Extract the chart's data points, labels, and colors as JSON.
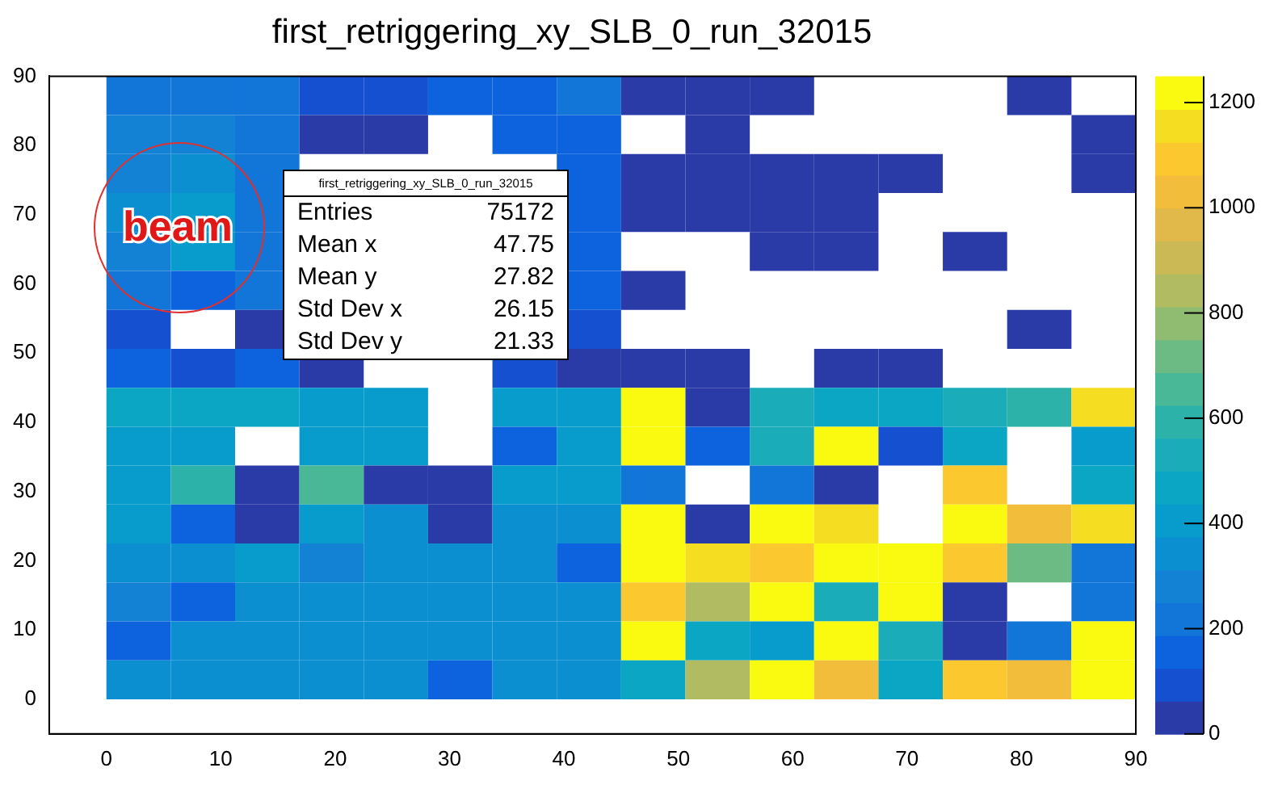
{
  "chart_data": {
    "type": "heatmap",
    "title": "first_retriggering_xy_SLB_0_run_32015",
    "x": [
      2.8125,
      8.4375,
      14.0625,
      19.6875,
      25.3125,
      30.9375,
      36.5625,
      42.1875,
      47.8125,
      53.4375,
      59.0625,
      64.6875,
      70.3125,
      75.9375,
      81.5625,
      87.1875
    ],
    "y": [
      87.1875,
      81.5625,
      75.9375,
      70.3125,
      64.6875,
      59.0625,
      53.4375,
      47.8125,
      42.1875,
      36.5625,
      30.9375,
      25.3125,
      19.6875,
      14.0625,
      8.4375,
      2.8125
    ],
    "xlim": [
      -5,
      90
    ],
    "xticks": [
      0,
      10,
      20,
      30,
      40,
      50,
      60,
      70,
      80,
      90
    ],
    "ylim": [
      -5,
      90
    ],
    "yticks": [
      0,
      10,
      20,
      30,
      40,
      50,
      60,
      70,
      80,
      90
    ],
    "clim": [
      0,
      1250
    ],
    "cticks": [
      0,
      200,
      400,
      600,
      800,
      1000,
      1200
    ],
    "colors": [
      "#2a3ba8",
      "#1550d0",
      "#0d63dd",
      "#1275d8",
      "#1482d4",
      "#0c8fd0",
      "#079ccc",
      "#0ba6c4",
      "#1aacb8",
      "#2cb2a8",
      "#48b896",
      "#6cbb85",
      "#90bc72",
      "#b0bb62",
      "#cbb955",
      "#e0b94a",
      "#f2bd3b",
      "#fcc830",
      "#f5de22",
      "#f9fa0f"
    ],
    "cells": [
      [
        220,
        220,
        220,
        100,
        100,
        150,
        150,
        220,
        30,
        30,
        30,
        null,
        null,
        null,
        30,
        null
      ],
      [
        280,
        300,
        220,
        30,
        30,
        null,
        150,
        150,
        null,
        30,
        null,
        null,
        null,
        null,
        null,
        30
      ],
      [
        300,
        330,
        200,
        null,
        null,
        null,
        null,
        150,
        30,
        30,
        30,
        30,
        30,
        null,
        null,
        30
      ],
      [
        330,
        400,
        200,
        null,
        null,
        null,
        null,
        150,
        30,
        30,
        30,
        30,
        null,
        null,
        null,
        null
      ],
      [
        300,
        380,
        200,
        null,
        null,
        null,
        null,
        150,
        null,
        null,
        30,
        30,
        null,
        30,
        null,
        null
      ],
      [
        220,
        150,
        200,
        null,
        null,
        null,
        null,
        150,
        30,
        null,
        null,
        null,
        null,
        null,
        null,
        null
      ],
      [
        100,
        null,
        30,
        null,
        null,
        null,
        null,
        100,
        null,
        null,
        null,
        null,
        null,
        null,
        30,
        null
      ],
      [
        170,
        100,
        150,
        30,
        null,
        null,
        100,
        60,
        30,
        30,
        null,
        30,
        30,
        null,
        null,
        null
      ],
      [
        480,
        480,
        480,
        430,
        430,
        null,
        430,
        380,
        1230,
        30,
        540,
        480,
        480,
        530,
        600,
        1160
      ],
      [
        420,
        420,
        null,
        420,
        420,
        null,
        150,
        380,
        1230,
        150,
        540,
        1230,
        100,
        480,
        null,
        420
      ],
      [
        420,
        590,
        30,
        650,
        30,
        30,
        420,
        420,
        240,
        null,
        240,
        30,
        null,
        1100,
        null,
        470
      ],
      [
        430,
        150,
        30,
        420,
        360,
        30,
        360,
        360,
        1230,
        30,
        1230,
        1160,
        null,
        1230,
        1040,
        1160
      ],
      [
        340,
        340,
        400,
        250,
        350,
        350,
        350,
        130,
        1230,
        1160,
        1100,
        1230,
        1230,
        1100,
        730,
        240
      ],
      [
        260,
        170,
        350,
        350,
        350,
        350,
        350,
        350,
        1090,
        840,
        1230,
        530,
        1230,
        30,
        null,
        240
      ],
      [
        140,
        350,
        350,
        350,
        350,
        350,
        350,
        350,
        1230,
        470,
        420,
        1230,
        540,
        30,
        240,
        1230
      ],
      [
        360,
        360,
        360,
        360,
        360,
        150,
        360,
        360,
        470,
        840,
        1230,
        1040,
        470,
        1100,
        1040,
        1230
      ]
    ],
    "annotations": [
      "first_retriggering_xy_SLB_0_run_32015",
      "Entries",
      "75172",
      "Mean x",
      "47.75",
      "Mean y",
      "27.82",
      "Std Dev x",
      "26.15",
      "Std Dev y",
      "21.33",
      "beam"
    ]
  }
}
